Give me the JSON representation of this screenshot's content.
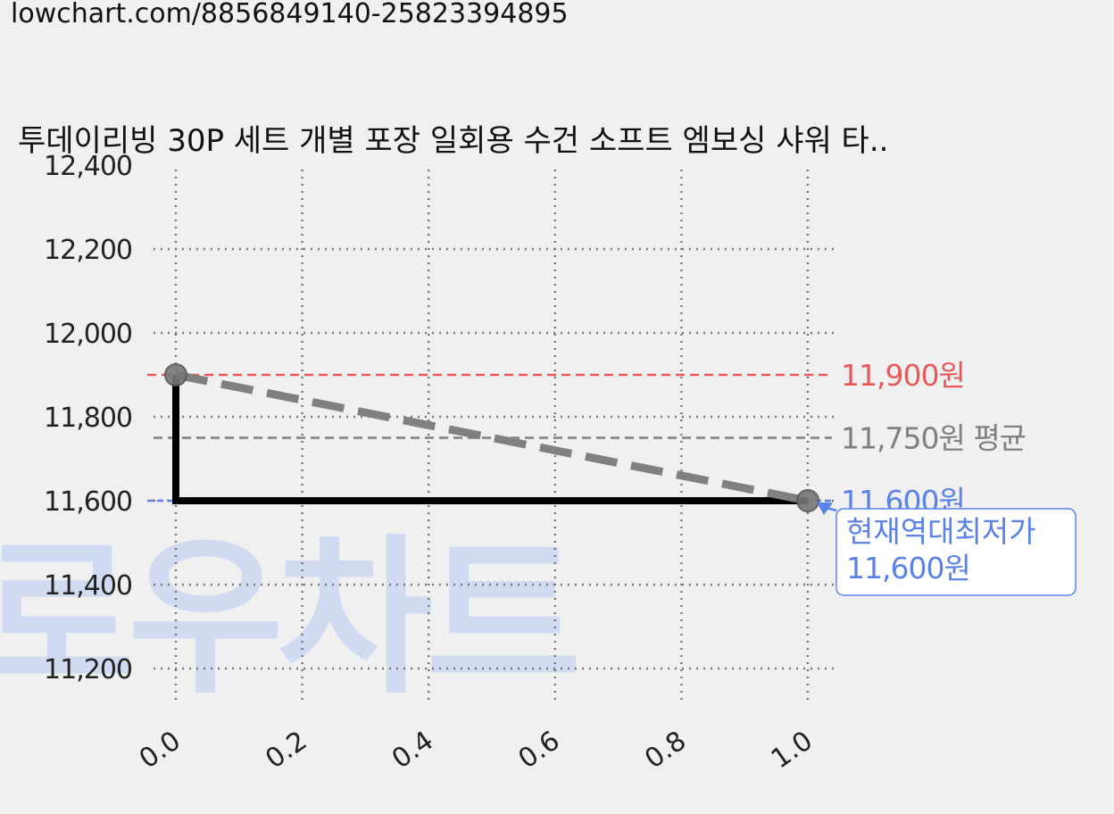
{
  "url": "lowchart.com/8856849140-25823394895",
  "watermark": "로우차트",
  "chart_data": {
    "type": "line",
    "title": "투데이리빙 30P 세트 개별 포장 일회용 수건 소프트 엠보싱 샤워 타..",
    "xlim": [
      0.0,
      1.0
    ],
    "ylim": [
      11100,
      12400
    ],
    "x_ticks": [
      "0.0",
      "0.2",
      "0.4",
      "0.6",
      "0.8",
      "1.0"
    ],
    "y_ticks": [
      "12,400",
      "12,200",
      "12,000",
      "11,800",
      "11,600",
      "11,400",
      "11,200"
    ],
    "grid": true,
    "series": [
      {
        "style": "step",
        "color": "#000000",
        "points": [
          [
            0.0,
            11900
          ],
          [
            0.0,
            11600
          ],
          [
            1.0,
            11600
          ]
        ]
      },
      {
        "style": "dashed-trend",
        "color": "#808080",
        "points": [
          [
            0.0,
            11900
          ],
          [
            1.0,
            11600
          ]
        ]
      }
    ],
    "reference_lines": [
      {
        "value": 11900,
        "label": "11,900원",
        "color": "#e85a5a"
      },
      {
        "value": 11750,
        "label": "11,750원 평균",
        "color": "#808080"
      },
      {
        "value": 11600,
        "label": "11,600원",
        "color": "#5a82e8"
      }
    ],
    "annotation": {
      "line1": "현재역대최저가",
      "line2": "11,600원",
      "color": "#5a82e8",
      "x": 1.0,
      "y": 11600
    }
  }
}
